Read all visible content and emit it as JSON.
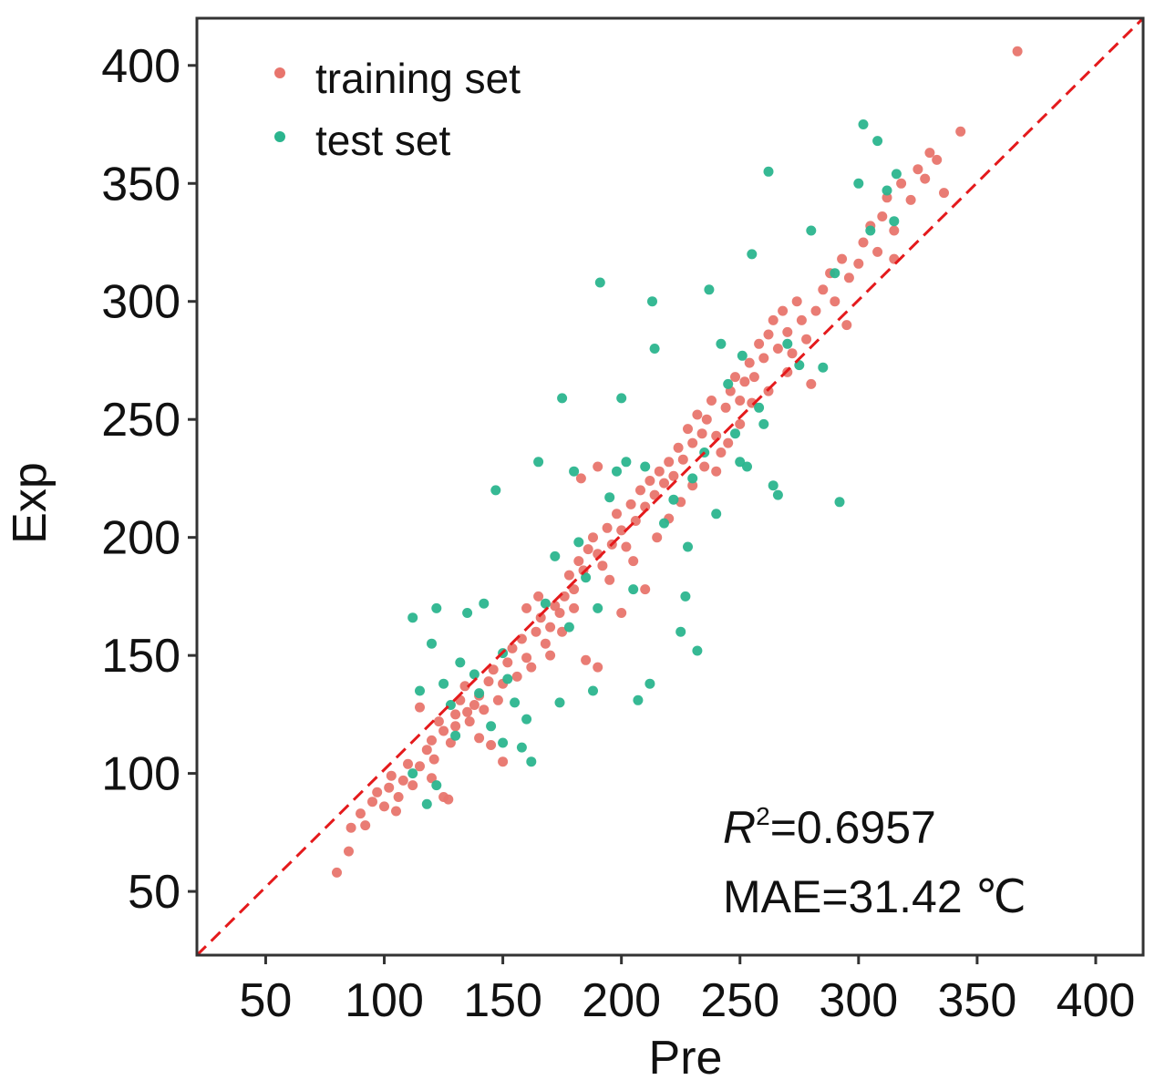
{
  "chart_data": {
    "type": "scatter",
    "xlabel": "Pre",
    "ylabel": "Exp",
    "xlim": [
      21,
      420
    ],
    "ylim": [
      23,
      420
    ],
    "xticks": [
      50,
      100,
      150,
      200,
      250,
      300,
      350,
      400
    ],
    "yticks": [
      50,
      100,
      150,
      200,
      250,
      300,
      350,
      400
    ],
    "grid": false,
    "legend_position": "top-left",
    "reference_line": {
      "from": [
        21,
        23
      ],
      "to": [
        420,
        420
      ],
      "style": "dashed",
      "color": "#e41a1c"
    },
    "annotations": {
      "r2_symbol": "R",
      "r2_sup": "2",
      "r2_value": "=0.6957",
      "mae": "MAE=31.42 ℃"
    },
    "series": [
      {
        "name": "training set",
        "color": "#e8756d",
        "points": [
          [
            80,
            58
          ],
          [
            85,
            67
          ],
          [
            86,
            77
          ],
          [
            90,
            83
          ],
          [
            92,
            78
          ],
          [
            95,
            88
          ],
          [
            97,
            92
          ],
          [
            100,
            86
          ],
          [
            102,
            94
          ],
          [
            103,
            99
          ],
          [
            105,
            84
          ],
          [
            106,
            90
          ],
          [
            108,
            97
          ],
          [
            110,
            104
          ],
          [
            112,
            95
          ],
          [
            115,
            103
          ],
          [
            118,
            110
          ],
          [
            120,
            114
          ],
          [
            121,
            106
          ],
          [
            123,
            122
          ],
          [
            125,
            118
          ],
          [
            127,
            89
          ],
          [
            128,
            113
          ],
          [
            130,
            125
          ],
          [
            132,
            131
          ],
          [
            134,
            137
          ],
          [
            136,
            122
          ],
          [
            138,
            129
          ],
          [
            140,
            133
          ],
          [
            142,
            127
          ],
          [
            144,
            139
          ],
          [
            146,
            144
          ],
          [
            148,
            131
          ],
          [
            150,
            138
          ],
          [
            152,
            147
          ],
          [
            154,
            153
          ],
          [
            156,
            141
          ],
          [
            158,
            157
          ],
          [
            160,
            149
          ],
          [
            162,
            145
          ],
          [
            164,
            160
          ],
          [
            166,
            166
          ],
          [
            168,
            155
          ],
          [
            170,
            162
          ],
          [
            172,
            171
          ],
          [
            174,
            168
          ],
          [
            176,
            175
          ],
          [
            178,
            184
          ],
          [
            180,
            178
          ],
          [
            182,
            190
          ],
          [
            184,
            186
          ],
          [
            186,
            195
          ],
          [
            188,
            200
          ],
          [
            190,
            193
          ],
          [
            192,
            188
          ],
          [
            194,
            204
          ],
          [
            196,
            197
          ],
          [
            198,
            210
          ],
          [
            200,
            203
          ],
          [
            202,
            196
          ],
          [
            204,
            214
          ],
          [
            206,
            207
          ],
          [
            208,
            220
          ],
          [
            210,
            213
          ],
          [
            212,
            224
          ],
          [
            214,
            218
          ],
          [
            216,
            228
          ],
          [
            218,
            223
          ],
          [
            220,
            232
          ],
          [
            222,
            226
          ],
          [
            224,
            238
          ],
          [
            226,
            233
          ],
          [
            228,
            246
          ],
          [
            230,
            240
          ],
          [
            232,
            252
          ],
          [
            234,
            244
          ],
          [
            236,
            250
          ],
          [
            238,
            258
          ],
          [
            240,
            243
          ],
          [
            242,
            236
          ],
          [
            244,
            255
          ],
          [
            246,
            262
          ],
          [
            248,
            268
          ],
          [
            250,
            258
          ],
          [
            252,
            266
          ],
          [
            254,
            274
          ],
          [
            256,
            268
          ],
          [
            258,
            282
          ],
          [
            260,
            276
          ],
          [
            262,
            286
          ],
          [
            264,
            292
          ],
          [
            266,
            280
          ],
          [
            268,
            296
          ],
          [
            270,
            287
          ],
          [
            272,
            278
          ],
          [
            274,
            300
          ],
          [
            276,
            292
          ],
          [
            278,
            284
          ],
          [
            282,
            296
          ],
          [
            285,
            305
          ],
          [
            288,
            312
          ],
          [
            290,
            300
          ],
          [
            293,
            318
          ],
          [
            296,
            310
          ],
          [
            300,
            316
          ],
          [
            302,
            325
          ],
          [
            305,
            332
          ],
          [
            308,
            321
          ],
          [
            310,
            336
          ],
          [
            312,
            344
          ],
          [
            315,
            330
          ],
          [
            318,
            350
          ],
          [
            322,
            343
          ],
          [
            325,
            356
          ],
          [
            328,
            352
          ],
          [
            330,
            363
          ],
          [
            333,
            360
          ],
          [
            336,
            346
          ],
          [
            343,
            372
          ],
          [
            367,
            406
          ],
          [
            115,
            128
          ],
          [
            120,
            98
          ],
          [
            125,
            90
          ],
          [
            130,
            120
          ],
          [
            135,
            126
          ],
          [
            140,
            115
          ],
          [
            145,
            112
          ],
          [
            150,
            105
          ],
          [
            160,
            170
          ],
          [
            165,
            175
          ],
          [
            170,
            150
          ],
          [
            175,
            160
          ],
          [
            180,
            170
          ],
          [
            185,
            148
          ],
          [
            190,
            145
          ],
          [
            195,
            182
          ],
          [
            200,
            168
          ],
          [
            205,
            190
          ],
          [
            210,
            178
          ],
          [
            215,
            200
          ],
          [
            220,
            208
          ],
          [
            225,
            215
          ],
          [
            230,
            222
          ],
          [
            235,
            230
          ],
          [
            240,
            228
          ],
          [
            245,
            240
          ],
          [
            250,
            248
          ],
          [
            255,
            257
          ],
          [
            262,
            262
          ],
          [
            270,
            270
          ],
          [
            280,
            265
          ],
          [
            295,
            290
          ],
          [
            315,
            318
          ],
          [
            183,
            225
          ],
          [
            190,
            230
          ]
        ]
      },
      {
        "name": "test set",
        "color": "#2bb58e",
        "points": [
          [
            112,
            166
          ],
          [
            115,
            135
          ],
          [
            120,
            155
          ],
          [
            122,
            170
          ],
          [
            125,
            138
          ],
          [
            128,
            129
          ],
          [
            130,
            116
          ],
          [
            132,
            147
          ],
          [
            135,
            168
          ],
          [
            138,
            142
          ],
          [
            140,
            134
          ],
          [
            142,
            172
          ],
          [
            145,
            120
          ],
          [
            147,
            220
          ],
          [
            150,
            151
          ],
          [
            152,
            140
          ],
          [
            155,
            130
          ],
          [
            158,
            111
          ],
          [
            162,
            105
          ],
          [
            165,
            232
          ],
          [
            168,
            172
          ],
          [
            172,
            192
          ],
          [
            174,
            130
          ],
          [
            175,
            259
          ],
          [
            178,
            162
          ],
          [
            180,
            228
          ],
          [
            182,
            198
          ],
          [
            185,
            183
          ],
          [
            188,
            135
          ],
          [
            190,
            170
          ],
          [
            191,
            308
          ],
          [
            195,
            217
          ],
          [
            198,
            228
          ],
          [
            200,
            259
          ],
          [
            202,
            232
          ],
          [
            205,
            178
          ],
          [
            207,
            131
          ],
          [
            210,
            230
          ],
          [
            212,
            138
          ],
          [
            213,
            300
          ],
          [
            214,
            280
          ],
          [
            218,
            206
          ],
          [
            222,
            216
          ],
          [
            225,
            160
          ],
          [
            227,
            175
          ],
          [
            228,
            196
          ],
          [
            230,
            225
          ],
          [
            232,
            152
          ],
          [
            235,
            236
          ],
          [
            237,
            305
          ],
          [
            240,
            210
          ],
          [
            242,
            282
          ],
          [
            245,
            265
          ],
          [
            248,
            244
          ],
          [
            250,
            232
          ],
          [
            251,
            277
          ],
          [
            253,
            230
          ],
          [
            255,
            320
          ],
          [
            258,
            255
          ],
          [
            260,
            248
          ],
          [
            262,
            355
          ],
          [
            264,
            222
          ],
          [
            266,
            218
          ],
          [
            270,
            282
          ],
          [
            275,
            273
          ],
          [
            280,
            330
          ],
          [
            285,
            272
          ],
          [
            290,
            312
          ],
          [
            292,
            215
          ],
          [
            300,
            350
          ],
          [
            302,
            375
          ],
          [
            305,
            330
          ],
          [
            308,
            368
          ],
          [
            312,
            347
          ],
          [
            315,
            334
          ],
          [
            316,
            354
          ],
          [
            112,
            100
          ],
          [
            118,
            87
          ],
          [
            122,
            95
          ],
          [
            150,
            113
          ],
          [
            160,
            123
          ]
        ]
      }
    ]
  }
}
